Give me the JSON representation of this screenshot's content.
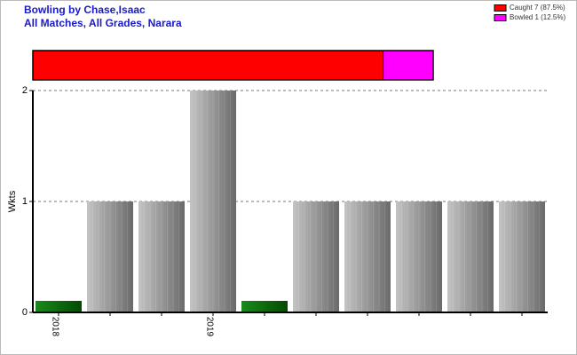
{
  "chart_data": [
    {
      "type": "stacked-hbar",
      "series": [
        {
          "name": "Caught 7 (87.5%)",
          "color": "#ff0000",
          "values": [
            7
          ]
        },
        {
          "name": "Bowled 1 (12.5%)",
          "color": "#ff00ff",
          "values": [
            1
          ]
        }
      ]
    },
    {
      "type": "bar",
      "title": "Bowling by Chase,Isaac",
      "subtitle": "All Matches, All Grades, Narara",
      "y_label": "Wkts",
      "categories": [
        "2018",
        null,
        null,
        "2019",
        null,
        null,
        null,
        null,
        null,
        null
      ],
      "values": [
        0,
        1,
        1,
        2,
        0,
        1,
        1,
        1,
        1,
        1
      ],
      "color": "#a0a0a0",
      "zero_color": "#0a6e0a",
      "ylim": [
        0,
        2
      ],
      "yticks": [
        0,
        1,
        2
      ],
      "grid": true
    }
  ]
}
